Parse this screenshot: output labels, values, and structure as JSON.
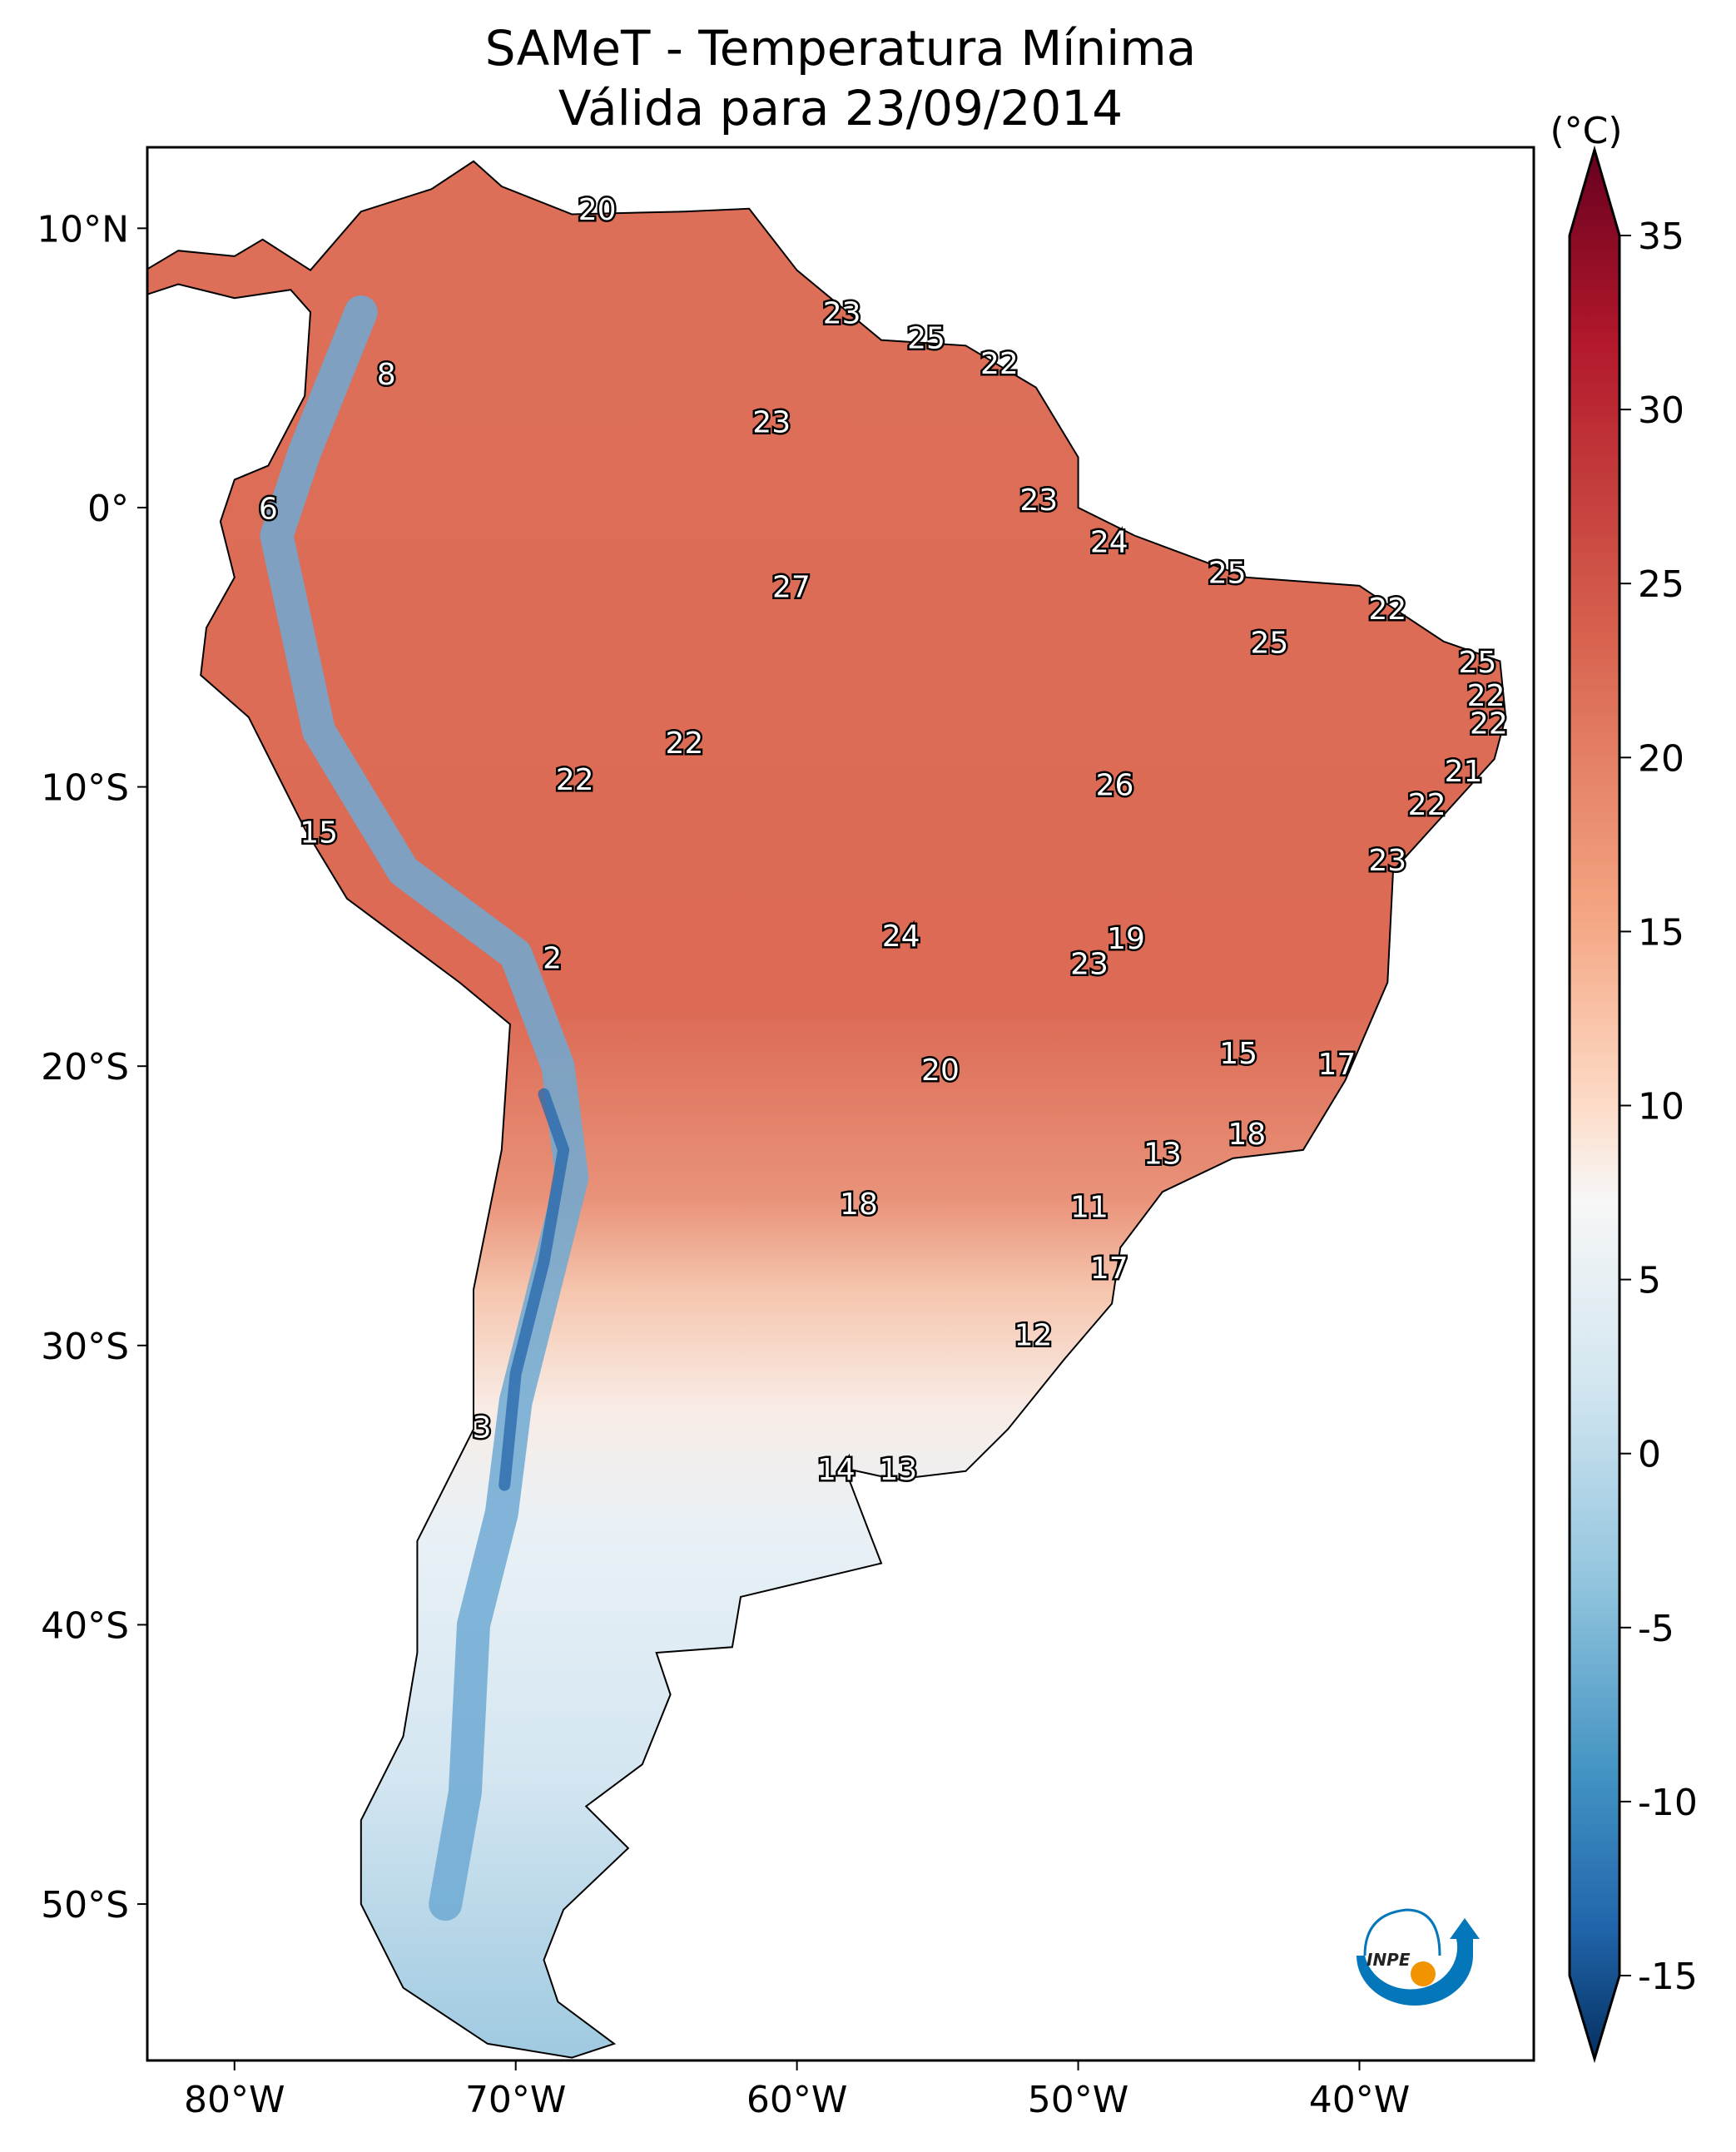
{
  "title": "SAMeT - Temperatura Mínima",
  "subtitle": "Válida para 23/09/2014",
  "logo_text": "INPE",
  "chart_data": {
    "type": "heatmap",
    "title": "SAMeT - Temperatura Mínima Válida para 23/09/2014",
    "x_range": [
      -83.1,
      -33.8
    ],
    "y_range": [
      -55.6,
      12.9
    ],
    "x_ticks": [
      {
        "v": -80,
        "label": "80°W"
      },
      {
        "v": -70,
        "label": "70°W"
      },
      {
        "v": -60,
        "label": "60°W"
      },
      {
        "v": -50,
        "label": "50°W"
      },
      {
        "v": -40,
        "label": "40°W"
      }
    ],
    "y_ticks": [
      {
        "v": 10,
        "label": "10°N"
      },
      {
        "v": 0,
        "label": "0°"
      },
      {
        "v": -10,
        "label": "10°S"
      },
      {
        "v": -20,
        "label": "20°S"
      },
      {
        "v": -30,
        "label": "30°S"
      },
      {
        "v": -40,
        "label": "40°S"
      },
      {
        "v": -50,
        "label": "50°S"
      }
    ],
    "colorbar": {
      "unit": "(°C)",
      "colormap": "RdBu_r",
      "range": [
        -15,
        35
      ],
      "extend": "both",
      "ticks": [
        "35",
        "30",
        "25",
        "20",
        "15",
        "10",
        "5",
        "0",
        "-5",
        "-10",
        "-15"
      ]
    },
    "point_labels": [
      {
        "lon": -67.1,
        "lat": 10.6,
        "value": "20"
      },
      {
        "lon": -58.4,
        "lat": 6.9,
        "value": "23"
      },
      {
        "lon": -55.4,
        "lat": 6.0,
        "value": "25"
      },
      {
        "lon": -52.8,
        "lat": 5.1,
        "value": "22"
      },
      {
        "lon": -74.6,
        "lat": 4.7,
        "value": "8"
      },
      {
        "lon": -60.9,
        "lat": 3.0,
        "value": "23"
      },
      {
        "lon": -78.8,
        "lat": -0.1,
        "value": "6"
      },
      {
        "lon": -51.4,
        "lat": 0.2,
        "value": "23"
      },
      {
        "lon": -48.9,
        "lat": -1.3,
        "value": "24"
      },
      {
        "lon": -44.7,
        "lat": -2.4,
        "value": "25"
      },
      {
        "lon": -60.2,
        "lat": -2.9,
        "value": "27"
      },
      {
        "lon": -39.0,
        "lat": -3.7,
        "value": "22"
      },
      {
        "lon": -43.2,
        "lat": -4.9,
        "value": "25"
      },
      {
        "lon": -35.8,
        "lat": -5.6,
        "value": "25"
      },
      {
        "lon": -35.5,
        "lat": -6.8,
        "value": "22"
      },
      {
        "lon": -35.4,
        "lat": -7.8,
        "value": "22"
      },
      {
        "lon": -64.0,
        "lat": -8.5,
        "value": "22"
      },
      {
        "lon": -67.9,
        "lat": -9.8,
        "value": "22"
      },
      {
        "lon": -48.7,
        "lat": -10.0,
        "value": "26"
      },
      {
        "lon": -36.3,
        "lat": -9.5,
        "value": "21"
      },
      {
        "lon": -37.6,
        "lat": -10.7,
        "value": "22"
      },
      {
        "lon": -77.0,
        "lat": -11.7,
        "value": "15"
      },
      {
        "lon": -39.0,
        "lat": -12.7,
        "value": "23"
      },
      {
        "lon": -56.3,
        "lat": -15.4,
        "value": "24"
      },
      {
        "lon": -48.3,
        "lat": -15.5,
        "value": "19"
      },
      {
        "lon": -68.7,
        "lat": -16.2,
        "value": "2"
      },
      {
        "lon": -49.6,
        "lat": -16.4,
        "value": "23"
      },
      {
        "lon": -44.3,
        "lat": -19.6,
        "value": "15"
      },
      {
        "lon": -40.8,
        "lat": -20.0,
        "value": "17"
      },
      {
        "lon": -54.9,
        "lat": -20.2,
        "value": "20"
      },
      {
        "lon": -44.0,
        "lat": -22.5,
        "value": "18"
      },
      {
        "lon": -47.0,
        "lat": -23.2,
        "value": "13"
      },
      {
        "lon": -57.8,
        "lat": -25.0,
        "value": "18"
      },
      {
        "lon": -49.6,
        "lat": -25.1,
        "value": "11"
      },
      {
        "lon": -48.9,
        "lat": -27.3,
        "value": "17"
      },
      {
        "lon": -51.6,
        "lat": -29.7,
        "value": "12"
      },
      {
        "lon": -71.2,
        "lat": -33.0,
        "value": "3"
      },
      {
        "lon": -58.6,
        "lat": -34.5,
        "value": "14"
      },
      {
        "lon": -56.4,
        "lat": -34.5,
        "value": "13"
      }
    ]
  }
}
